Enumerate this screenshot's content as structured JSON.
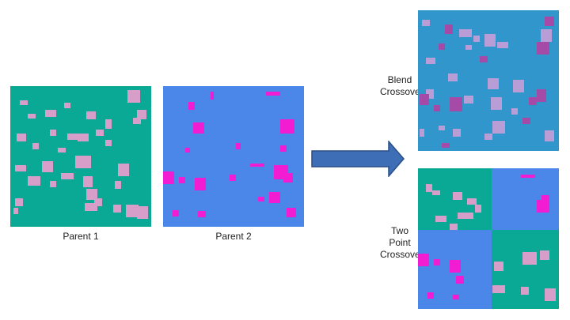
{
  "colors": {
    "parent1_bg": "#0aa995",
    "parent1_rect": "#d69ec9",
    "parent2_bg": "#4b87e8",
    "parent2_rect": "#f21cd2",
    "blend_bg": "#3196cc",
    "blend_rect_light": "#b89dd6",
    "blend_rect_dark": "#a64aa8",
    "arrow_fill": "#3e6eb5",
    "arrow_stroke": "#2b4f86"
  },
  "labels": {
    "parent1": "Parent 1",
    "parent2": "Parent 2",
    "blend_line1": "Blend",
    "blend_line2": "Crossover",
    "twopoint_line1": "Two Point",
    "twopoint_line2": "Crossover"
  }
}
